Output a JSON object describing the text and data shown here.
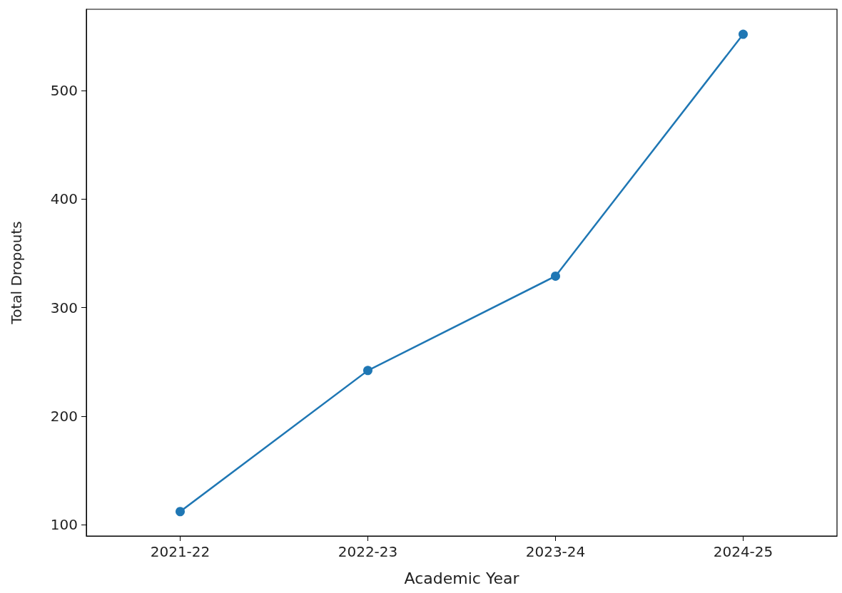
{
  "chart_data": {
    "type": "line",
    "xlabel": "Academic Year",
    "ylabel": "Total Dropouts",
    "categories": [
      "2021-22",
      "2022-23",
      "2023-24",
      "2024-25"
    ],
    "series": [
      {
        "color": "#1f77b4",
        "values": [
          112,
          242,
          329,
          552
        ]
      }
    ],
    "ylim": [
      89.5,
      575
    ],
    "yticks": [
      100,
      200,
      300,
      400,
      500
    ],
    "marker": "circle",
    "grid": false
  }
}
